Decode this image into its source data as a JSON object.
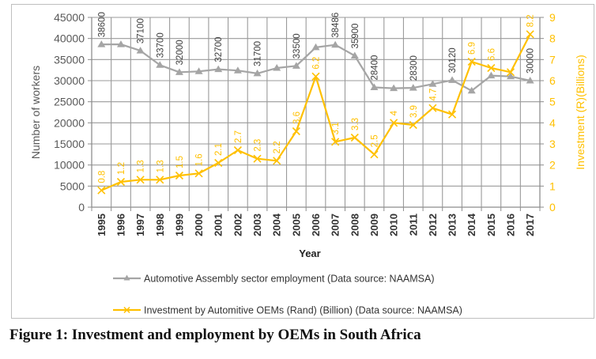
{
  "chart_data": {
    "type": "line",
    "title": "",
    "caption": "Figure 1: Investment and employment by OEMs in South Africa",
    "xlabel": "Year",
    "ylabel_left": "Number of workers",
    "ylabel_right": "Investment (R)(Billions)",
    "ylim_left": [
      0,
      45000
    ],
    "ylim_right": [
      0,
      9
    ],
    "yticks_left": [
      "0",
      "5000",
      "10000",
      "15000",
      "20000",
      "25000",
      "30000",
      "35000",
      "40000",
      "45000"
    ],
    "yticks_right": [
      "0",
      "1",
      "2",
      "3",
      "4",
      "5",
      "6",
      "7",
      "8",
      "9"
    ],
    "grid": true,
    "legend_position": "bottom",
    "categories": [
      "1995",
      "1996",
      "1997",
      "1998",
      "1999",
      "2000",
      "2001",
      "2002",
      "2003",
      "2004",
      "2005",
      "2006",
      "2007",
      "2008",
      "2009",
      "2010",
      "2011",
      "2012",
      "2013",
      "2014",
      "2015",
      "2016",
      "2017"
    ],
    "series": [
      {
        "name": "Automotive Assembly sector employment (Data source: NAAMSA)",
        "axis": "left",
        "color": "#a5a5a5",
        "marker": "triangle",
        "values": [
          38600,
          38600,
          37100,
          33700,
          32000,
          32200,
          32700,
          32400,
          31700,
          33000,
          33500,
          37900,
          38486,
          35900,
          28400,
          28200,
          28300,
          29200,
          30120,
          27600,
          31200,
          31000,
          30000
        ],
        "labels": [
          "38600",
          "",
          "37100",
          "33700",
          "32000",
          "",
          "32700",
          "",
          "31700",
          "",
          "33500",
          "",
          "38486",
          "35900",
          "28400",
          "",
          "28300",
          "",
          "30120",
          "",
          "",
          "",
          "30000"
        ]
      },
      {
        "name": "Investment by Automitive OEMs (Rand) (Billion) (Data source: NAAMSA)",
        "axis": "right",
        "color": "#ffc000",
        "marker": "x",
        "values": [
          0.8,
          1.2,
          1.3,
          1.3,
          1.5,
          1.6,
          2.1,
          2.7,
          2.3,
          2.2,
          3.6,
          6.2,
          3.1,
          3.3,
          2.5,
          4.0,
          3.9,
          4.7,
          4.4,
          6.9,
          6.6,
          6.4,
          8.2
        ],
        "labels": [
          "0.8",
          "1.2",
          "1.3",
          "1.3",
          "1.5",
          "1.6",
          "2.1",
          "2.7",
          "2.3",
          "2.2",
          "3.6",
          "6.2",
          "3.1",
          "3.3",
          "2.5",
          "4",
          "3.9",
          "4.7",
          "",
          "6.9",
          "6.6",
          "",
          "8.2"
        ]
      }
    ]
  }
}
